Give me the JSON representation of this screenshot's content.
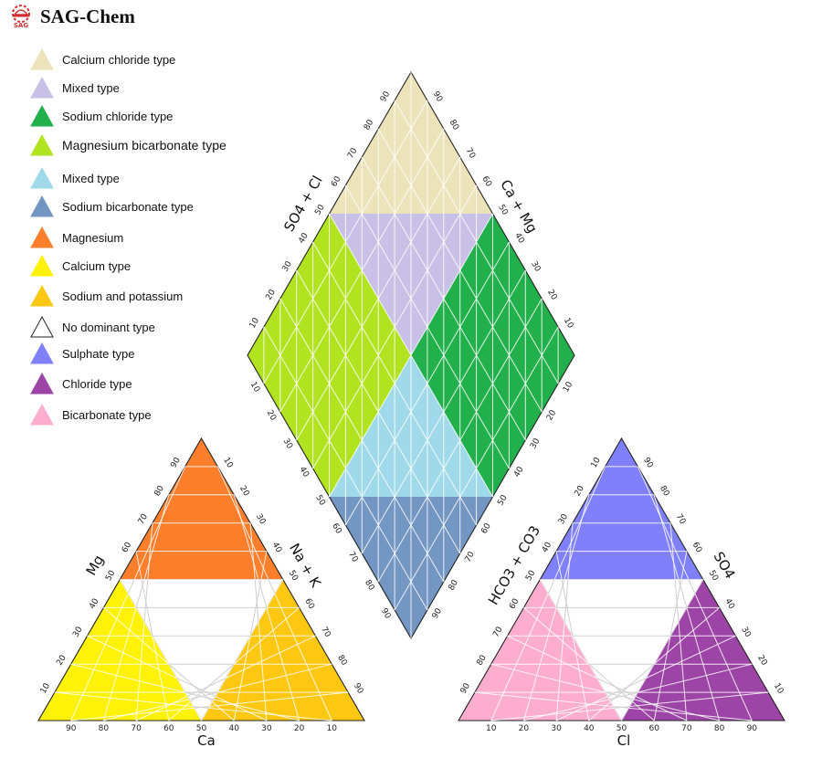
{
  "brand": {
    "name": "SAG-Chem",
    "logo_text": "SAG",
    "logo_icon": "hardhat-gear-icon"
  },
  "legend": [
    {
      "label": "Calcium chloride type",
      "color": "#ede3bb"
    },
    {
      "label": "Mixed type",
      "color": "#c8c0e6"
    },
    {
      "label": "Sodium chloride type",
      "color": "#22b04c"
    },
    {
      "label": "Magnesium bicarbonate type",
      "color": "#b1e321"
    },
    {
      "label": "Mixed type",
      "color": "#9fd9ea"
    },
    {
      "label": "Sodium bicarbonate type",
      "color": "#7396c3"
    },
    {
      "label": "Magnesium",
      "color": "#fd7e2b"
    },
    {
      "label": "Calcium  type",
      "color": "#fef209"
    },
    {
      "label": "Sodium and potassium",
      "color": "#fec812"
    },
    {
      "label": "No dominant type",
      "color": "#ffffff"
    },
    {
      "label": "Sulphate type",
      "color": "#8080fa"
    },
    {
      "label": "Chloride type",
      "color": "#9d45a6"
    },
    {
      "label": "Bicarbonate type",
      "color": "#fdaece"
    }
  ],
  "cation_triangle": {
    "apex_label": "Mg",
    "right_label": "Na + K",
    "bottom_label": "Ca",
    "bottom_ticks": [
      "90",
      "80",
      "70",
      "60",
      "50",
      "40",
      "30",
      "20",
      "10"
    ],
    "left_ticks": [
      "10",
      "20",
      "30",
      "40",
      "50",
      "60",
      "70",
      "80",
      "90"
    ],
    "right_ticks": [
      "10",
      "20",
      "30",
      "40",
      "50",
      "60",
      "70",
      "80",
      "90"
    ]
  },
  "anion_triangle": {
    "left_label": "HCO3 + CO3",
    "right_label": "SO4",
    "bottom_label": "Cl",
    "bottom_ticks": [
      "10",
      "20",
      "30",
      "40",
      "50",
      "60",
      "70",
      "80",
      "90"
    ],
    "left_ticks": [
      "90",
      "80",
      "70",
      "60",
      "50",
      "40",
      "30",
      "20",
      "10"
    ],
    "right_ticks": [
      "90",
      "80",
      "70",
      "60",
      "50",
      "40",
      "30",
      "20",
      "10"
    ]
  },
  "diamond": {
    "upper_left_label": "SO4 + Cl",
    "upper_right_label": "Ca + Mg",
    "upper_left_ticks": [
      "10",
      "20",
      "30",
      "40",
      "50",
      "60",
      "70",
      "80",
      "90"
    ],
    "upper_right_ticks": [
      "10",
      "20",
      "30",
      "40",
      "50",
      "60",
      "70",
      "80",
      "90"
    ],
    "lower_left_ticks": [
      "10",
      "20",
      "30",
      "40",
      "50",
      "60",
      "70",
      "80",
      "90"
    ],
    "lower_right_ticks": [
      "10",
      "20",
      "30",
      "40",
      "50",
      "60",
      "70",
      "80",
      "90"
    ]
  },
  "colors": {
    "calcium_chloride": "#ede3bb",
    "mixed_upper": "#c8c0e6",
    "sodium_chloride": "#22b04c",
    "magnesium_bicarbonate": "#b1e321",
    "mixed_lower": "#9fd9ea",
    "sodium_bicarbonate": "#7396c3",
    "magnesium": "#fd7e2b",
    "calcium": "#fef209",
    "sodium_potassium": "#fec812",
    "sulphate": "#8080fa",
    "chloride": "#9d45a6",
    "bicarbonate": "#fdaece",
    "no_dominant": "#ffffff"
  }
}
